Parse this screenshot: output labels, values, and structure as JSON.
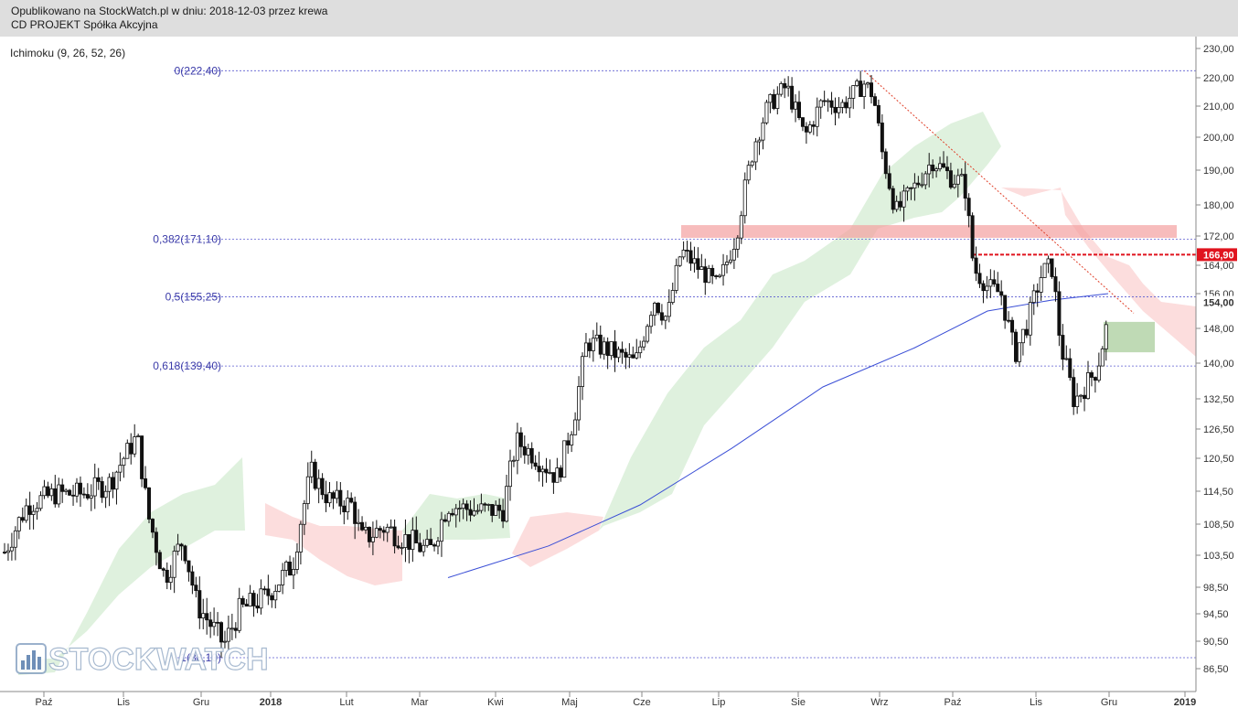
{
  "header": {
    "line1": "Opublikowano na StockWatch.pl w dniu: 2018-12-03 przez krewa",
    "line2": "CD PROJEKT Spółka Akcyjna"
  },
  "watermark": {
    "text": "STOCKWATCH"
  },
  "colors": {
    "candle": "#111111",
    "fib_line": "#5b5bd0",
    "ma_line": "#3b4fd6",
    "trendline": "#e0402a",
    "cloud_bull": "#d9eed8",
    "cloud_bear": "#fbd7d7",
    "resistance_zone": "#f4a0a0",
    "target_zone": "#aacd9c",
    "price_marker": "#e0141e"
  },
  "chart_data": {
    "type": "candlestick",
    "indicator_label": "Ichimoku (9, 26, 52, 26)",
    "y_axis": {
      "range": [
        84,
        231
      ],
      "ticks": [
        "230,00",
        "220,00",
        "210,00",
        "200,00",
        "190,00",
        "180,00",
        "172,00",
        "164,00",
        "156,00",
        "148,00",
        "140,00",
        "132,50",
        "126,50",
        "120,50",
        "114,50",
        "108,50",
        "103,50",
        "98,50",
        "94,50",
        "90,50",
        "86,50"
      ],
      "highlighted": [
        {
          "label": "166,90",
          "value": 166.9,
          "style": "red-box"
        },
        {
          "label": "154,00",
          "value": 154.0,
          "style": "bold"
        }
      ]
    },
    "x_axis": {
      "months": [
        "Paź",
        "Lis",
        "Gru",
        "2018",
        "Lut",
        "Mar",
        "Kwi",
        "Maj",
        "Cze",
        "Lip",
        "Sie",
        "Wrz",
        "Paź",
        "Lis",
        "Gru",
        "2019"
      ]
    },
    "fibonacci": [
      {
        "label": "0(222,40)",
        "value": 222.4
      },
      {
        "label": "0,382(171,10)",
        "value": 171.1
      },
      {
        "label": "0,5(155,25)",
        "value": 155.25
      },
      {
        "label": "0,618(139,40)",
        "value": 139.4
      },
      {
        "label": "1(88,10)",
        "value": 88.1
      }
    ],
    "levels": [
      {
        "name": "resistance-zone",
        "from": 171.5,
        "to": 174.8
      },
      {
        "name": "dashed-resistance",
        "value": 166.9
      },
      {
        "name": "target-zone",
        "from": 142.5,
        "to": 149.5
      }
    ],
    "moving_average_200": {
      "points": [
        [
          490,
          100.0
        ],
        [
          600,
          105.0
        ],
        [
          700,
          112.0
        ],
        [
          800,
          122.5
        ],
        [
          900,
          135.0
        ],
        [
          1000,
          143.5
        ],
        [
          1080,
          152.0
        ],
        [
          1150,
          154.5
        ],
        [
          1212,
          156.0
        ]
      ]
    },
    "trendline": {
      "from": [
        945,
        222.4
      ],
      "to": [
        1240,
        151.5
      ]
    },
    "candles": []
  }
}
